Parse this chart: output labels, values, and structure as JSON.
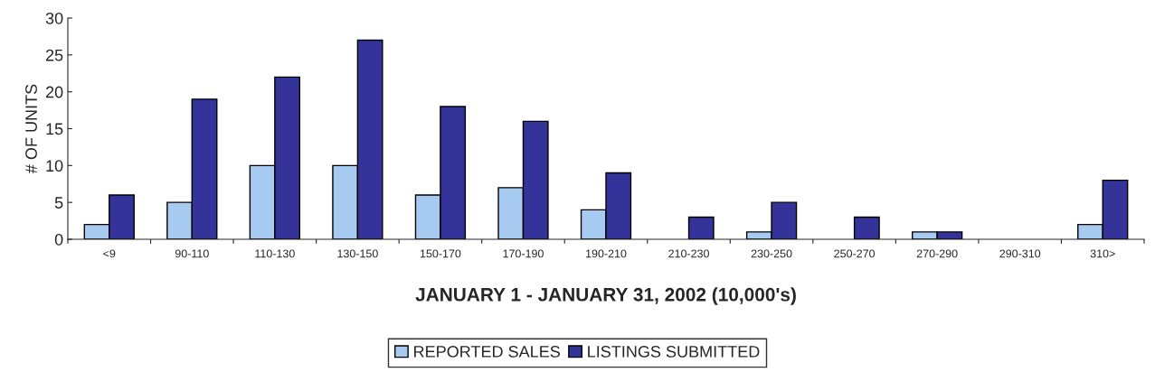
{
  "chart_data": {
    "type": "bar",
    "xlabel": "JANUARY 1 - JANUARY 31, 2002 (10,000's)",
    "ylabel": "# OF UNITS",
    "categories": [
      "<9",
      "90-110",
      "110-130",
      "130-150",
      "150-170",
      "170-190",
      "190-210",
      "210-230",
      "230-250",
      "250-270",
      "270-290",
      "290-310",
      "310>"
    ],
    "series": [
      {
        "name": "REPORTED SALES",
        "color": "#a6caf0",
        "values": [
          2,
          5,
          10,
          10,
          6,
          7,
          4,
          null,
          1,
          null,
          1,
          null,
          2
        ]
      },
      {
        "name": "LISTINGS SUBMITTED",
        "color": "#333399",
        "values": [
          6,
          19,
          22,
          27,
          18,
          16,
          9,
          3,
          5,
          3,
          1,
          null,
          8
        ]
      }
    ],
    "ylim": [
      0,
      30
    ],
    "yticks": [
      0,
      5,
      10,
      15,
      20,
      25,
      30
    ],
    "grid": false,
    "legend": "bottom"
  }
}
